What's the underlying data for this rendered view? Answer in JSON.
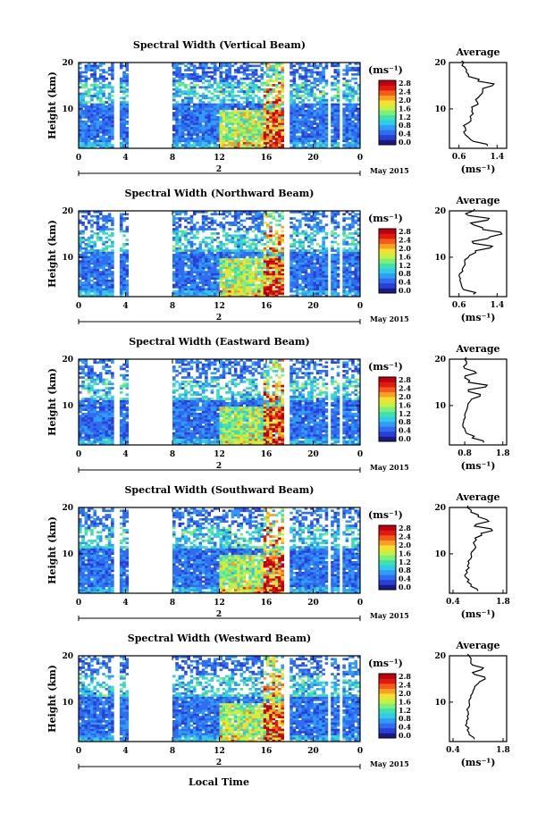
{
  "figure": {
    "shared_x_label": "Local Time",
    "date_label": "May 2015",
    "day_label": "2",
    "colorbar_unit": "(ms⁻¹)",
    "profile_unit": "(ms⁻¹)",
    "colorbar_ticks": [
      "0.0",
      "0.4",
      "0.8",
      "1.2",
      "1.6",
      "2.0",
      "2.4",
      "2.8"
    ],
    "colormap": [
      "#1a1a80",
      "#2a3fd6",
      "#2f6cf0",
      "#2f9cf5",
      "#30cbe8",
      "#40e0b0",
      "#7ef07a",
      "#c8f040",
      "#f5e030",
      "#f8a020",
      "#f55a18",
      "#e01a10",
      "#c00010"
    ]
  },
  "chart_data": [
    {
      "type": "heatmap",
      "title": "Spectral Width (Vertical Beam)",
      "ylabel": "Height (km)",
      "x_ticks": [
        "0",
        "4",
        "8",
        "12",
        "16",
        "20",
        "0"
      ],
      "y_ticks": [
        "20",
        "10"
      ],
      "xlim": [
        0,
        24
      ],
      "ylim": [
        1.5,
        20
      ],
      "zlim": [
        0.0,
        3.0
      ],
      "data_gaps_hours": [
        [
          0.9,
          1.1
        ],
        [
          3.1,
          3.6
        ],
        [
          4.3,
          8.0
        ],
        [
          9.4,
          9.6
        ],
        [
          17.4,
          18.0
        ],
        [
          21.3,
          21.6
        ],
        [
          22.2,
          22.5
        ]
      ],
      "profile": {
        "title": "Average",
        "x_ticks": [
          "0.6",
          "1.4"
        ],
        "xlim": [
          0.4,
          1.6
        ],
        "y_ticks": [
          "20",
          "10"
        ],
        "heights": [
          2,
          3,
          4,
          5,
          6,
          7,
          8,
          9,
          10,
          11,
          12,
          13,
          14,
          15,
          16,
          17,
          18,
          19,
          20
        ],
        "values": [
          1.2,
          0.9,
          0.78,
          0.7,
          0.73,
          0.8,
          0.85,
          0.9,
          0.88,
          1.0,
          0.95,
          1.05,
          1.1,
          1.3,
          1.0,
          0.8,
          0.75,
          0.72,
          0.7
        ]
      }
    },
    {
      "type": "heatmap",
      "title": "Spectral Width (Northward Beam)",
      "ylabel": "Height (km)",
      "x_ticks": [
        "0",
        "4",
        "8",
        "12",
        "16",
        "20",
        "0"
      ],
      "y_ticks": [
        "20",
        "10"
      ],
      "xlim": [
        0,
        24
      ],
      "ylim": [
        1.5,
        20
      ],
      "zlim": [
        0.0,
        3.0
      ],
      "data_gaps_hours": [
        [
          0.4,
          0.6
        ],
        [
          3.1,
          3.6
        ],
        [
          4.3,
          8.0
        ],
        [
          9.4,
          9.6
        ],
        [
          17.4,
          18.0
        ],
        [
          21.3,
          21.6
        ],
        [
          22.3,
          22.6
        ]
      ],
      "profile": {
        "title": "Average",
        "x_ticks": [
          "0.6",
          "1.4"
        ],
        "xlim": [
          0.4,
          1.6
        ],
        "y_ticks": [
          "20",
          "10"
        ],
        "heights": [
          2,
          3,
          4,
          5,
          6,
          7,
          8,
          9,
          10,
          11,
          12,
          13,
          14,
          15,
          16,
          17,
          18,
          19,
          20
        ],
        "values": [
          0.9,
          0.7,
          0.65,
          0.62,
          0.6,
          0.68,
          0.7,
          0.72,
          0.8,
          0.95,
          1.25,
          0.9,
          1.2,
          1.5,
          1.1,
          0.9,
          1.2,
          0.8,
          0.9
        ]
      }
    },
    {
      "type": "heatmap",
      "title": "Spectral Width (Eastward Beam)",
      "ylabel": "Height (km)",
      "x_ticks": [
        "0",
        "4",
        "8",
        "12",
        "16",
        "20",
        "0"
      ],
      "y_ticks": [
        "20",
        "10"
      ],
      "xlim": [
        0,
        24
      ],
      "ylim": [
        1.5,
        20
      ],
      "zlim": [
        0.0,
        3.0
      ],
      "data_gaps_hours": [
        [
          0.4,
          0.6
        ],
        [
          3.1,
          3.6
        ],
        [
          4.3,
          8.0
        ],
        [
          9.4,
          9.6
        ],
        [
          17.4,
          18.0
        ],
        [
          21.3,
          21.6
        ],
        [
          22.3,
          22.6
        ]
      ],
      "profile": {
        "title": "Average",
        "x_ticks": [
          "0.8",
          "1.8"
        ],
        "xlim": [
          0.4,
          1.9
        ],
        "y_ticks": [
          "20",
          "10"
        ],
        "heights": [
          2,
          3,
          4,
          5,
          6,
          7,
          8,
          9,
          10,
          11,
          12,
          13,
          14,
          15,
          16,
          17,
          18,
          19,
          20
        ],
        "values": [
          1.3,
          1.0,
          0.85,
          0.8,
          0.75,
          0.78,
          0.8,
          0.85,
          0.88,
          0.95,
          1.2,
          0.9,
          1.35,
          0.9,
          0.8,
          1.1,
          0.8,
          0.85,
          0.8
        ]
      }
    },
    {
      "type": "heatmap",
      "title": "Spectral Width (Southward Beam)",
      "ylabel": "Height (km)",
      "x_ticks": [
        "0",
        "4",
        "8",
        "12",
        "16",
        "20",
        "0"
      ],
      "y_ticks": [
        "20",
        "10"
      ],
      "xlim": [
        0,
        24
      ],
      "ylim": [
        1.5,
        20
      ],
      "zlim": [
        0.0,
        3.0
      ],
      "data_gaps_hours": [
        [
          0.4,
          0.6
        ],
        [
          3.1,
          3.6
        ],
        [
          4.3,
          8.0
        ],
        [
          9.4,
          9.6
        ],
        [
          17.4,
          18.0
        ],
        [
          21.3,
          21.6
        ],
        [
          22.3,
          22.6
        ]
      ],
      "profile": {
        "title": "Average",
        "x_ticks": [
          "0.4",
          "1.8"
        ],
        "xlim": [
          0.3,
          1.9
        ],
        "y_ticks": [
          "20",
          "10"
        ],
        "heights": [
          2,
          3,
          4,
          5,
          6,
          7,
          8,
          9,
          10,
          11,
          12,
          13,
          14,
          15,
          16,
          17,
          18,
          19,
          20
        ],
        "values": [
          1.1,
          0.9,
          0.8,
          0.75,
          0.8,
          0.85,
          0.85,
          0.9,
          0.9,
          1.0,
          1.0,
          1.05,
          1.2,
          1.5,
          1.0,
          1.4,
          1.1,
          0.9,
          0.8
        ]
      }
    },
    {
      "type": "heatmap",
      "title": "Spectral Width (Westward Beam)",
      "ylabel": "Height (km)",
      "x_ticks": [
        "0",
        "4",
        "8",
        "12",
        "16",
        "20",
        "0"
      ],
      "y_ticks": [
        "20",
        "10"
      ],
      "xlim": [
        0,
        24
      ],
      "ylim": [
        1.5,
        20
      ],
      "zlim": [
        0.0,
        3.0
      ],
      "data_gaps_hours": [
        [
          0.4,
          0.6
        ],
        [
          3.1,
          3.6
        ],
        [
          4.3,
          8.0
        ],
        [
          9.4,
          9.6
        ],
        [
          17.4,
          18.0
        ],
        [
          21.3,
          21.6
        ],
        [
          22.3,
          22.6
        ]
      ],
      "profile": {
        "title": "Average",
        "x_ticks": [
          "0.4",
          "1.8"
        ],
        "xlim": [
          0.3,
          1.9
        ],
        "y_ticks": [
          "20",
          "10"
        ],
        "heights": [
          2,
          3,
          4,
          5,
          6,
          7,
          8,
          9,
          10,
          11,
          12,
          13,
          14,
          15,
          16,
          17,
          18,
          19,
          20
        ],
        "values": [
          1.0,
          0.85,
          0.8,
          0.75,
          0.78,
          0.8,
          0.82,
          0.85,
          0.85,
          0.9,
          0.95,
          1.0,
          1.1,
          1.3,
          1.0,
          1.2,
          0.95,
          0.9,
          0.85
        ]
      }
    }
  ]
}
